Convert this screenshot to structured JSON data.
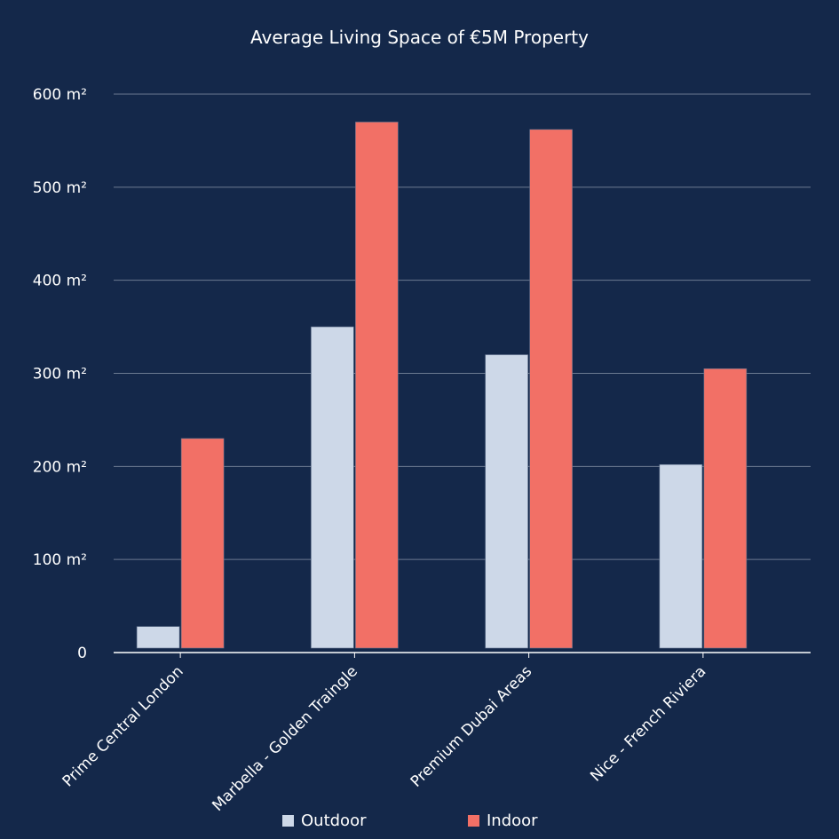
{
  "chart_data": {
    "type": "bar",
    "title": "Average Living Space of €5M Property",
    "categories": [
      "Prime Central London",
      "Marbella - Golden Traingle",
      "Premium Dubai Areas",
      "Nice - French Riviera"
    ],
    "series": [
      {
        "name": "Outdoor",
        "color": "#cdd8e8",
        "values": [
          28,
          350,
          320,
          202
        ]
      },
      {
        "name": "Indoor",
        "color": "#f27066",
        "values": [
          230,
          570,
          562,
          305
        ]
      }
    ],
    "yticks": [
      "0",
      "100 m²",
      "200 m²",
      "300 m²",
      "400 m²",
      "500 m²",
      "600 m²"
    ],
    "ylim": [
      0,
      600
    ],
    "grid": true,
    "legend": "bottom"
  }
}
